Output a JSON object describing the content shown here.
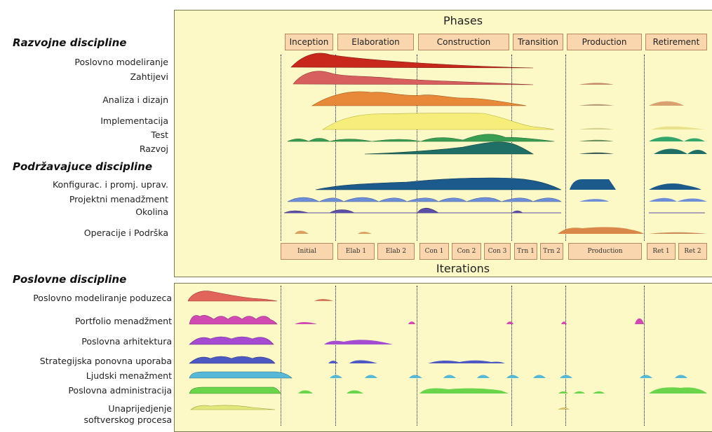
{
  "phases_title": "Phases",
  "iterations_title": "Iterations",
  "sections": {
    "razvojne": "Razvojne discipline",
    "podrzavajuce": "Podržavajuce discipline",
    "poslovne": "Poslovne discipline"
  },
  "phases": [
    "Inception",
    "Elaboration",
    "Construction",
    "Transition",
    "Production",
    "Retirement"
  ],
  "iterations": [
    "Initial",
    "Elab 1",
    "Elab 2",
    "Con 1",
    "Con 2",
    "Con 3",
    "Trn 1",
    "Trn 2",
    "Production",
    "Ret 1",
    "Ret 2"
  ],
  "razvojne_disciplines": [
    "Poslovno modeliranje",
    "Zahtijevi",
    "Analiza i dizajn",
    "Implementacija",
    "Test",
    "Razvoj"
  ],
  "podrzavajuce_disciplines": [
    "Konfigurac. i promj. uprav.",
    "Projektni menadžment",
    "Okolina",
    "Operacije i Podrška"
  ],
  "poslovne_disciplines": [
    "Poslovno modeliranje poduzeca",
    "Portfolio menadžment",
    "Poslovna arhitektura",
    "Strategijska ponovna uporaba",
    "Ljudski menažment",
    "Poslovna administracija",
    "Unaprijedjenje",
    "softverskog procesa"
  ],
  "colors": {
    "panel": "#fcf9c6",
    "box": "#f9d6ae",
    "poslovno": "#c8281c",
    "zahtijevi": "#d7605e",
    "analiza": "#e8893a",
    "implementacija": "#f6ee7a",
    "test": "#3a9e52",
    "razvoj": "#1f6f66",
    "konfig": "#1d5a8c",
    "projektni": "#6d8ed6",
    "okolina": "#5a4fa3",
    "operacije": "#d9884a",
    "enterprise_modeling": "#e0645a",
    "portfolio": "#d14ab1",
    "arhitektura": "#a44bd1",
    "uporaba": "#4d58c2",
    "ljudski": "#56b8d6",
    "administracija": "#6ad44a",
    "spi": "#e2e87a"
  }
}
